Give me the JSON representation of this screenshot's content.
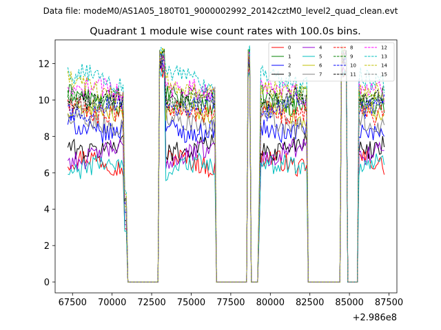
{
  "suptitle": "Data file: modeM0/AS1A05_180T01_9000002992_20142cztM0_level2_quad_clean.evt",
  "chart_data": {
    "type": "line",
    "title": "Quadrant 1 module wise count rates with 100.0s bins.",
    "xlabel": "",
    "ylabel": "",
    "x_offset_label": "+2.986e8",
    "xlim": [
      66400,
      88000
    ],
    "ylim": [
      -0.6,
      13.3
    ],
    "xticks": [
      67500,
      70000,
      72500,
      75000,
      77500,
      80000,
      82500,
      85000,
      87500
    ],
    "yticks": [
      0,
      2,
      4,
      6,
      8,
      10,
      12
    ],
    "bin_width_s": 100.0,
    "x_start": 67200,
    "x_step": 100,
    "segments": [
      [
        67200,
        70700
      ],
      [
        70800,
        70900
      ],
      [
        71000,
        72900
      ],
      [
        73000,
        73300
      ],
      [
        73400,
        76500
      ],
      [
        76600,
        78500
      ],
      [
        78600,
        78700
      ],
      [
        78800,
        79200
      ],
      [
        79300,
        82300
      ],
      [
        82400,
        84400
      ],
      [
        84500,
        84800
      ],
      [
        84900,
        85500
      ],
      [
        85600,
        87200
      ]
    ],
    "off_segments": [
      [
        71000,
        72900
      ],
      [
        76600,
        78500
      ],
      [
        78800,
        79200
      ],
      [
        82400,
        84400
      ],
      [
        84900,
        85500
      ]
    ],
    "spike_segments": [
      [
        73000,
        73300
      ],
      [
        78600,
        78700
      ],
      [
        84500,
        84800
      ]
    ],
    "legend": {
      "location": "upper-right",
      "columns": 4
    },
    "series": [
      {
        "name": "0",
        "color": "#ff0000",
        "dash": "solid",
        "level": 6.5
      },
      {
        "name": "1",
        "color": "#008000",
        "dash": "solid",
        "level": 10.0
      },
      {
        "name": "2",
        "color": "#0000ff",
        "dash": "solid",
        "level": 8.5
      },
      {
        "name": "3",
        "color": "#000000",
        "dash": "solid",
        "level": 7.5
      },
      {
        "name": "4",
        "color": "#9400d3",
        "dash": "solid",
        "level": 7.0
      },
      {
        "name": "5",
        "color": "#00bfbf",
        "dash": "solid",
        "level": 6.2
      },
      {
        "name": "6",
        "color": "#bfbf00",
        "dash": "solid",
        "level": 9.2
      },
      {
        "name": "7",
        "color": "#808080",
        "dash": "solid",
        "level": 8.8
      },
      {
        "name": "8",
        "color": "#ff0000",
        "dash": "dashed",
        "level": 9.5
      },
      {
        "name": "9",
        "color": "#008000",
        "dash": "dashed",
        "level": 10.2
      },
      {
        "name": "10",
        "color": "#0000ff",
        "dash": "dashed",
        "level": 9.6
      },
      {
        "name": "11",
        "color": "#000000",
        "dash": "dashed",
        "level": 9.9
      },
      {
        "name": "12",
        "color": "#ff00ff",
        "dash": "dashed",
        "level": 10.4
      },
      {
        "name": "13",
        "color": "#00bfbf",
        "dash": "dashed",
        "level": 11.1
      },
      {
        "name": "14",
        "color": "#bfbf00",
        "dash": "dashed",
        "level": 10.7
      },
      {
        "name": "15",
        "color": "#808080",
        "dash": "dashed",
        "level": 10.1
      }
    ]
  }
}
